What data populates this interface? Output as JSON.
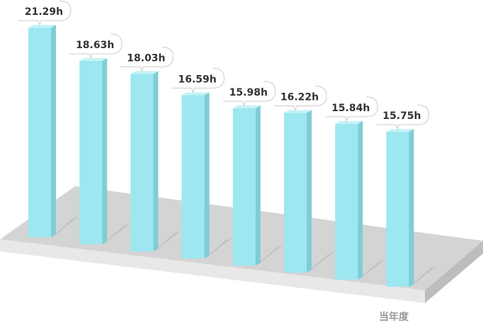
{
  "chart_data": {
    "type": "bar3d",
    "xlabel": "当年度",
    "values": [
      21.29,
      18.63,
      18.03,
      16.59,
      15.98,
      16.22,
      15.84,
      15.75
    ],
    "value_labels": [
      "21.29h",
      "18.63h",
      "18.03h",
      "16.59h",
      "15.98h",
      "16.22h",
      "15.84h",
      "15.75h"
    ],
    "color": "#9de7f0"
  }
}
